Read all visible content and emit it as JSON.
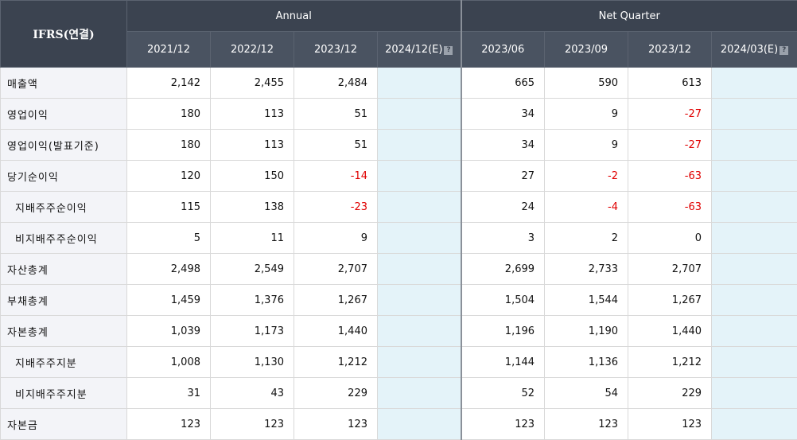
{
  "header": {
    "corner_label": "IFRS(연결)",
    "group_annual": "Annual",
    "group_quarter": "Net Quarter",
    "annual_periods": [
      "2021/12",
      "2022/12",
      "2023/12",
      "2024/12(E)"
    ],
    "quarter_periods": [
      "2023/06",
      "2023/09",
      "2023/12",
      "2024/03(E)"
    ],
    "help_icon": "question-mark-icon"
  },
  "colors": {
    "header_bg": "#3b4350",
    "label_bg": "#f3f4f8",
    "estimate_bg": "#e4f3f9",
    "negative_text": "#e00000"
  },
  "rows": [
    {
      "label": "매출액",
      "sub": false,
      "annual": [
        "2,142",
        "2,455",
        "2,484",
        ""
      ],
      "quarter": [
        "665",
        "590",
        "613",
        ""
      ]
    },
    {
      "label": "영업이익",
      "sub": false,
      "annual": [
        "180",
        "113",
        "51",
        ""
      ],
      "quarter": [
        "34",
        "9",
        "-27",
        ""
      ]
    },
    {
      "label": "영업이익(발표기준)",
      "sub": false,
      "annual": [
        "180",
        "113",
        "51",
        ""
      ],
      "quarter": [
        "34",
        "9",
        "-27",
        ""
      ]
    },
    {
      "label": "당기순이익",
      "sub": false,
      "annual": [
        "120",
        "150",
        "-14",
        ""
      ],
      "quarter": [
        "27",
        "-2",
        "-63",
        ""
      ]
    },
    {
      "label": "지배주주순이익",
      "sub": true,
      "annual": [
        "115",
        "138",
        "-23",
        ""
      ],
      "quarter": [
        "24",
        "-4",
        "-63",
        ""
      ]
    },
    {
      "label": "비지배주주순이익",
      "sub": true,
      "annual": [
        "5",
        "11",
        "9",
        ""
      ],
      "quarter": [
        "3",
        "2",
        "0",
        ""
      ]
    },
    {
      "label": "자산총계",
      "sub": false,
      "annual": [
        "2,498",
        "2,549",
        "2,707",
        ""
      ],
      "quarter": [
        "2,699",
        "2,733",
        "2,707",
        ""
      ]
    },
    {
      "label": "부채총계",
      "sub": false,
      "annual": [
        "1,459",
        "1,376",
        "1,267",
        ""
      ],
      "quarter": [
        "1,504",
        "1,544",
        "1,267",
        ""
      ]
    },
    {
      "label": "자본총계",
      "sub": false,
      "annual": [
        "1,039",
        "1,173",
        "1,440",
        ""
      ],
      "quarter": [
        "1,196",
        "1,190",
        "1,440",
        ""
      ]
    },
    {
      "label": "지배주주지분",
      "sub": true,
      "annual": [
        "1,008",
        "1,130",
        "1,212",
        ""
      ],
      "quarter": [
        "1,144",
        "1,136",
        "1,212",
        ""
      ]
    },
    {
      "label": "비지배주주지분",
      "sub": true,
      "annual": [
        "31",
        "43",
        "229",
        ""
      ],
      "quarter": [
        "52",
        "54",
        "229",
        ""
      ]
    },
    {
      "label": "자본금",
      "sub": false,
      "annual": [
        "123",
        "123",
        "123",
        ""
      ],
      "quarter": [
        "123",
        "123",
        "123",
        ""
      ]
    }
  ]
}
